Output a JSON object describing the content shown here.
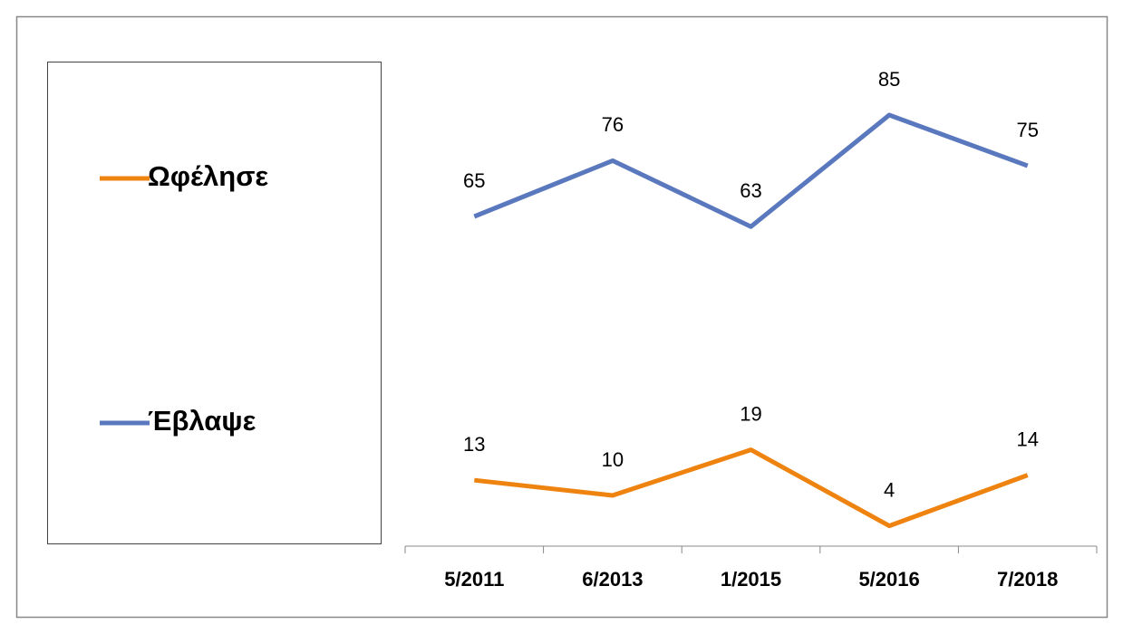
{
  "chart_data": {
    "type": "line",
    "categories": [
      "5/2011",
      "6/2013",
      "1/2015",
      "5/2016",
      "7/2018"
    ],
    "series": [
      {
        "name": "Ωφέλησε",
        "color": "#ee8310",
        "values": [
          13,
          10,
          19,
          4,
          14
        ]
      },
      {
        "name": "Έβλαψε",
        "color": "#5a78bd",
        "values": [
          65,
          76,
          63,
          85,
          75
        ]
      }
    ],
    "ylim": [
      0,
      100
    ],
    "legend": "left"
  }
}
